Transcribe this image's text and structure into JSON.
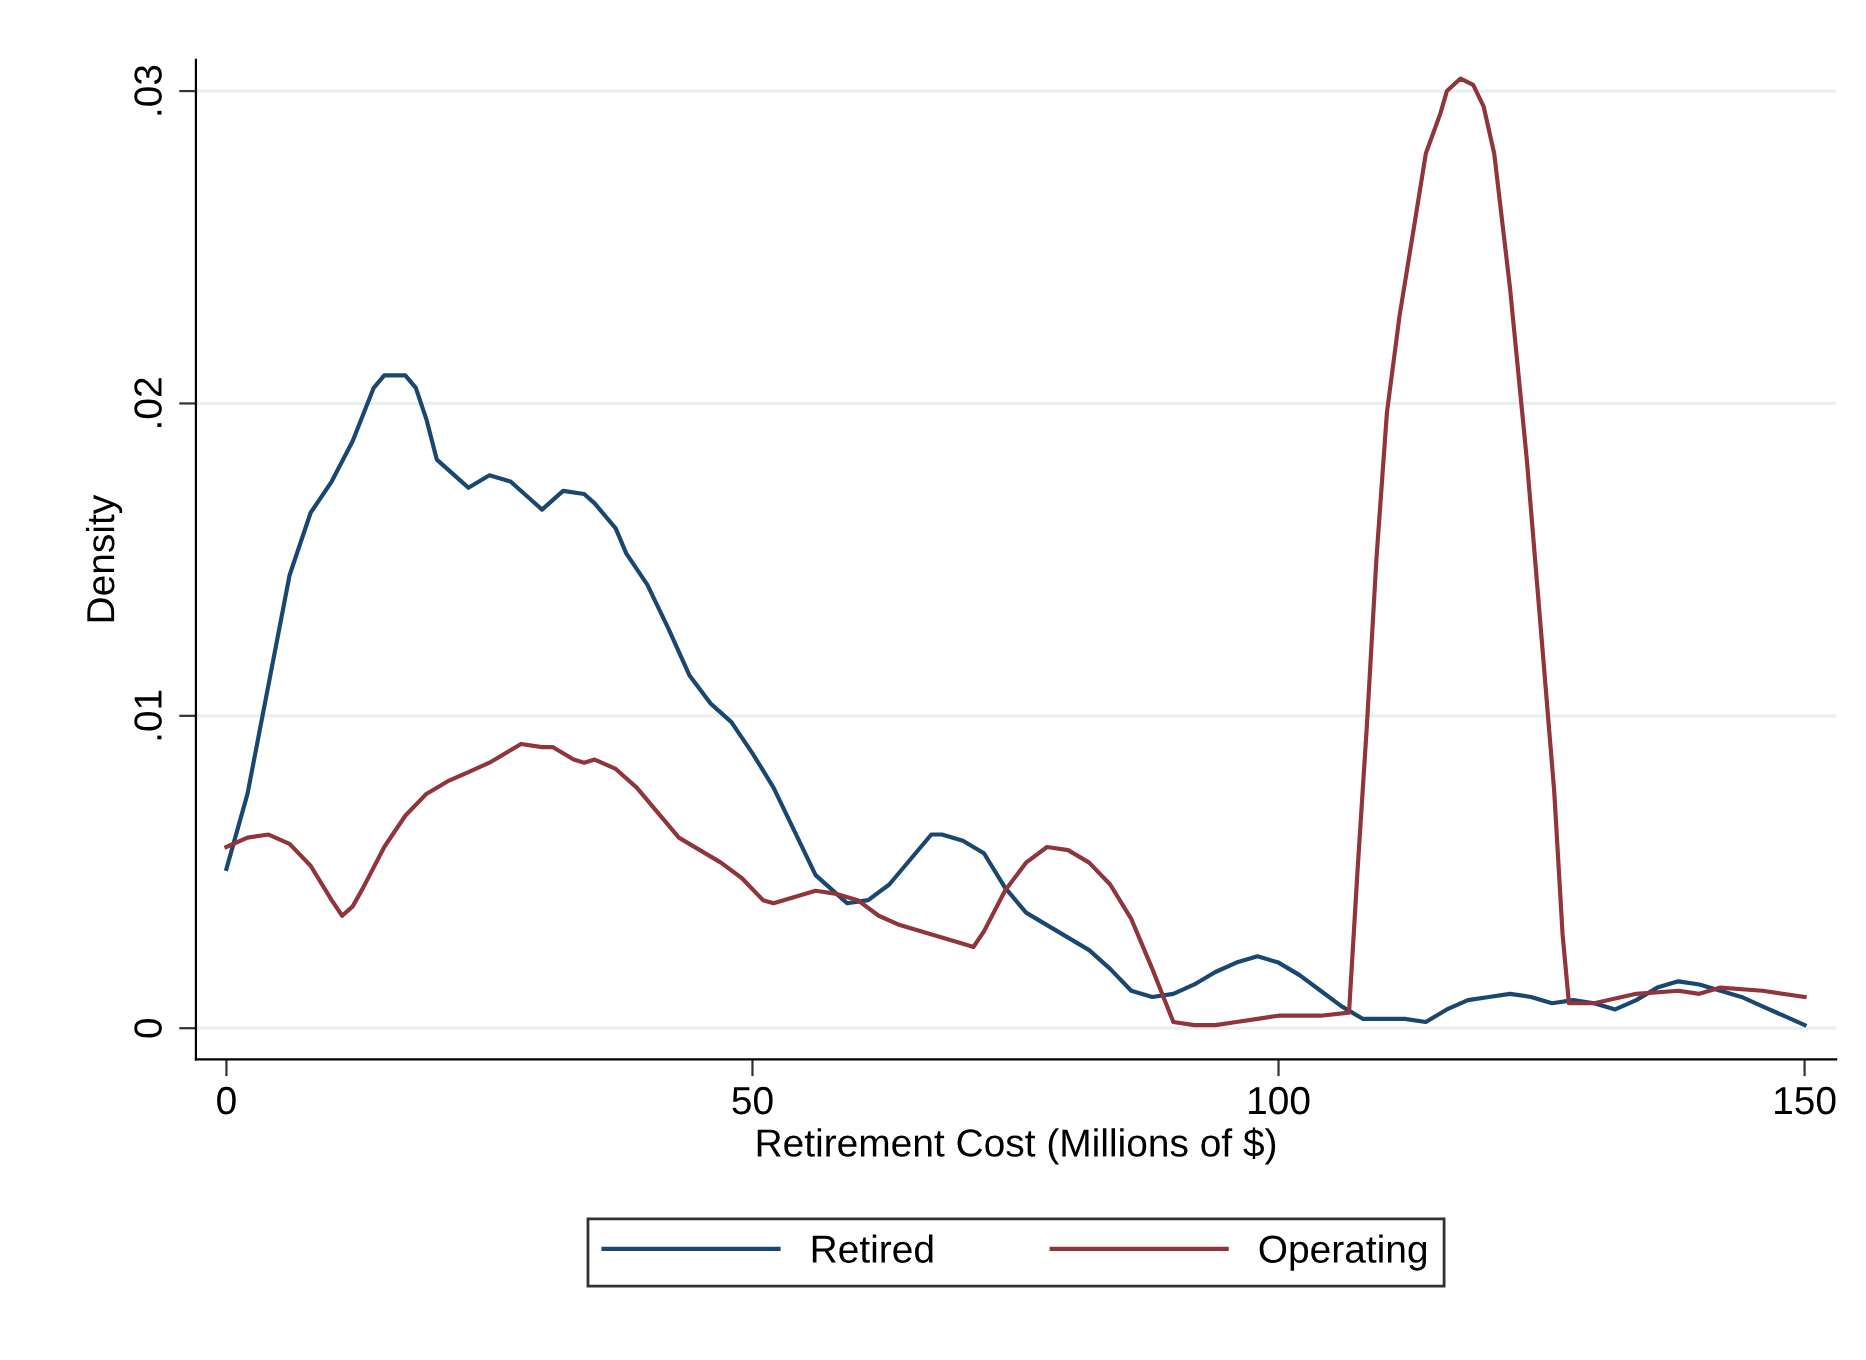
{
  "chart_data": {
    "type": "line",
    "xlabel": "Retirement Cost (Millions of $)",
    "ylabel": "Density",
    "xlim": [
      -2.9,
      153
    ],
    "ylim": [
      -0.001,
      0.031
    ],
    "xticks": [
      0,
      50,
      100,
      150
    ],
    "yticks": [
      {
        "value": 0,
        "label": "0"
      },
      {
        "value": 0.01,
        "label": ".01"
      },
      {
        "value": 0.02,
        "label": ".02"
      },
      {
        "value": 0.03,
        "label": ".03"
      }
    ],
    "grid": "y",
    "legend": "bottom",
    "line_style": "solid",
    "series": [
      {
        "name": "Retired",
        "color": "#1a476f",
        "x": [
          0,
          2,
          4,
          6,
          8,
          10,
          12,
          14,
          15,
          17,
          18,
          19,
          20,
          22,
          23,
          25,
          27,
          29,
          30,
          32,
          34,
          35,
          37,
          38,
          40,
          42,
          44,
          46,
          48,
          50,
          52,
          54,
          56,
          58,
          59,
          61,
          63,
          65,
          67,
          68,
          70,
          72,
          74,
          76,
          78,
          80,
          82,
          84,
          86,
          88,
          90,
          92,
          94,
          96,
          98,
          100,
          102,
          104,
          106,
          108,
          112,
          114,
          116,
          118,
          120,
          122,
          124,
          126,
          128,
          130,
          132,
          134,
          136,
          138,
          140,
          142,
          144,
          146,
          148,
          150
        ],
        "values": [
          0.0051,
          0.0075,
          0.011,
          0.0145,
          0.0165,
          0.0175,
          0.0188,
          0.0205,
          0.0209,
          0.0209,
          0.0205,
          0.0195,
          0.0182,
          0.0176,
          0.0173,
          0.0177,
          0.0175,
          0.0169,
          0.0166,
          0.0172,
          0.0171,
          0.0168,
          0.016,
          0.0152,
          0.0142,
          0.0128,
          0.0113,
          0.0104,
          0.0098,
          0.0088,
          0.0077,
          0.0063,
          0.0049,
          0.0043,
          0.004,
          0.0041,
          0.0046,
          0.0054,
          0.0062,
          0.0062,
          0.006,
          0.0056,
          0.0045,
          0.0037,
          0.0033,
          0.0029,
          0.0025,
          0.0019,
          0.0012,
          0.001,
          0.0011,
          0.0014,
          0.0018,
          0.0021,
          0.0023,
          0.0021,
          0.0017,
          0.0012,
          0.0007,
          0.0003,
          0.0003,
          0.0002,
          0.0006,
          0.0009,
          0.001,
          0.0011,
          0.001,
          0.0008,
          0.0009,
          0.0008,
          0.0006,
          0.0009,
          0.0013,
          0.0015,
          0.0014,
          0.0012,
          0.001,
          0.0007,
          0.0004,
          0.0001
        ]
      },
      {
        "name": "Operating",
        "color": "#90353b",
        "x": [
          0,
          2,
          4,
          6,
          8,
          10,
          11,
          12,
          13,
          15,
          17,
          19,
          21,
          23,
          25,
          27,
          28,
          30,
          31,
          33,
          34,
          35,
          37,
          39,
          41,
          43,
          45,
          47,
          49,
          51,
          52,
          54,
          56,
          58,
          60,
          62,
          64,
          66,
          68,
          70,
          71,
          72,
          74,
          76,
          78,
          80,
          82,
          84,
          86,
          88,
          90,
          92,
          94,
          96,
          98,
          100,
          104,
          106.7,
          107.5,
          108.4,
          109.3,
          110.3,
          111.5,
          112.9,
          114,
          115.4,
          116,
          117.3,
          118.5,
          119.5,
          120.5,
          122,
          123.6,
          125,
          126.2,
          127,
          127.6,
          130,
          134,
          138,
          140,
          142,
          146,
          150
        ],
        "values": [
          0.0058,
          0.0061,
          0.0062,
          0.0059,
          0.0052,
          0.0041,
          0.0036,
          0.0039,
          0.0045,
          0.0058,
          0.0068,
          0.0075,
          0.0079,
          0.0082,
          0.0085,
          0.0089,
          0.0091,
          0.009,
          0.009,
          0.0086,
          0.0085,
          0.0086,
          0.0083,
          0.0077,
          0.0069,
          0.0061,
          0.0057,
          0.0053,
          0.0048,
          0.0041,
          0.004,
          0.0042,
          0.0044,
          0.0043,
          0.0041,
          0.0036,
          0.0033,
          0.0031,
          0.0029,
          0.0027,
          0.0026,
          0.0031,
          0.0044,
          0.0053,
          0.0058,
          0.0057,
          0.0053,
          0.0046,
          0.0035,
          0.0019,
          0.0002,
          0.0001,
          0.0001,
          0.0002,
          0.0003,
          0.0004,
          0.0004,
          0.0005,
          0.005,
          0.0097,
          0.015,
          0.0197,
          0.0228,
          0.0257,
          0.028,
          0.0293,
          0.03,
          0.0304,
          0.0302,
          0.0295,
          0.028,
          0.0237,
          0.0182,
          0.0125,
          0.0076,
          0.003,
          0.0008,
          0.0008,
          0.0011,
          0.0012,
          0.0011,
          0.0013,
          0.0012,
          0.001
        ]
      }
    ]
  }
}
